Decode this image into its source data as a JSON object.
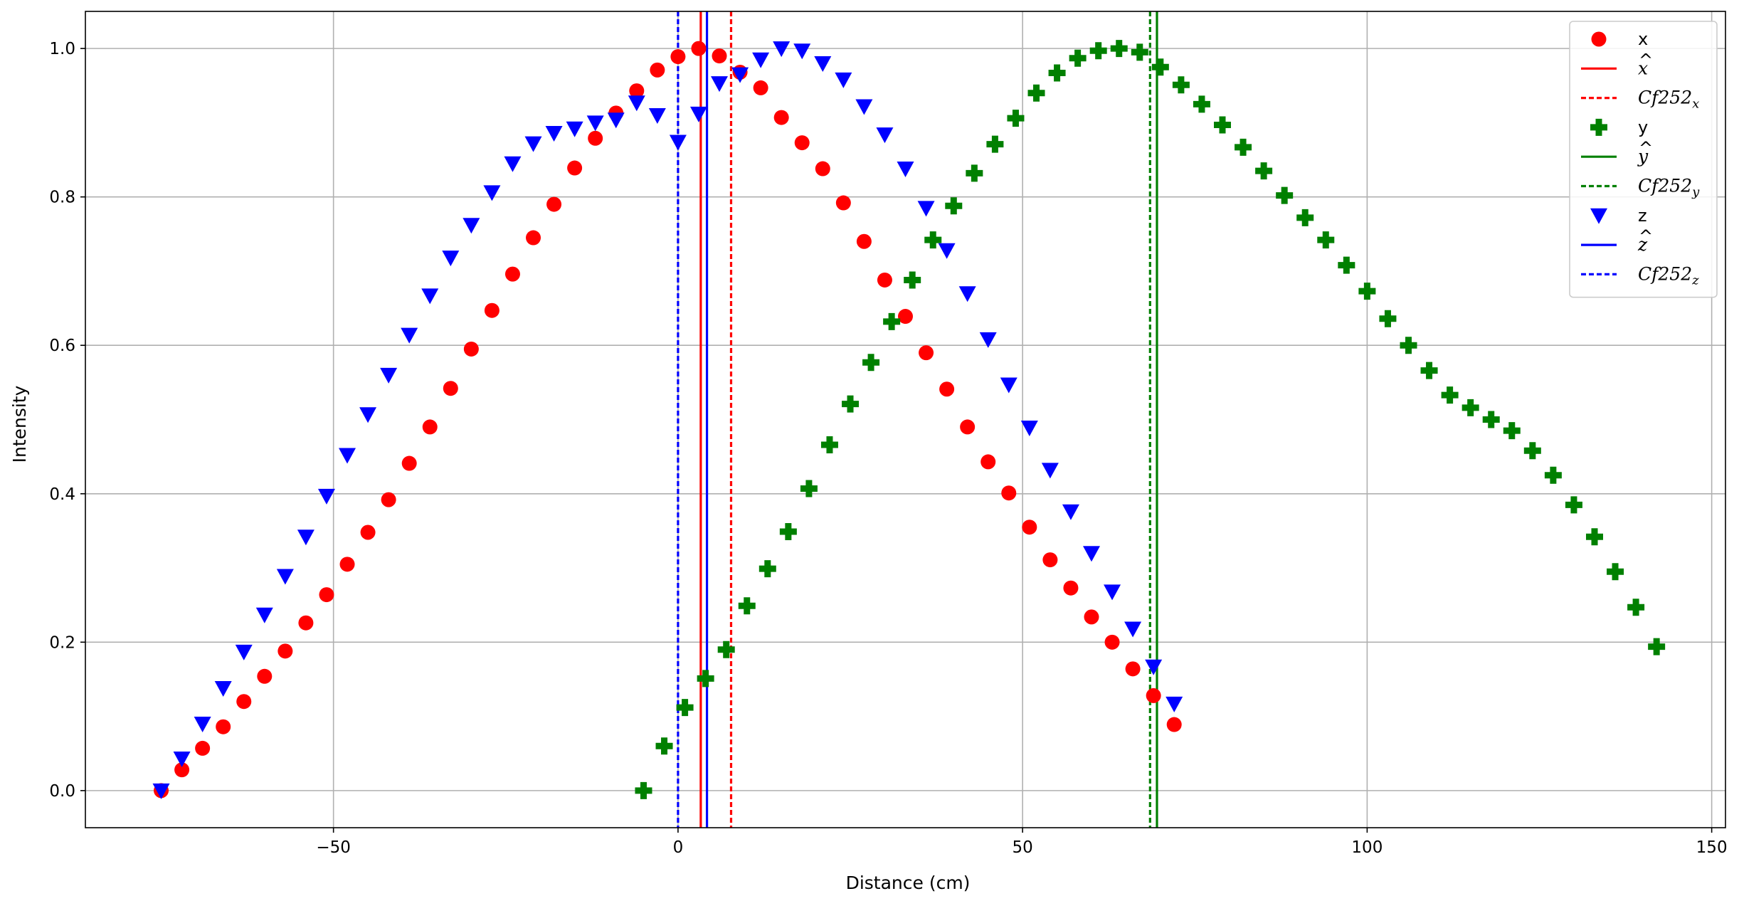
{
  "chart_data": {
    "type": "scatter",
    "title": "",
    "xlabel": "Distance (cm)",
    "ylabel": "Intensity",
    "xlim": [
      -86,
      152
    ],
    "ylim": [
      -0.05,
      1.05
    ],
    "xticks": [
      -50,
      0,
      50,
      100,
      150
    ],
    "xtick_labels": [
      "−50",
      "0",
      "50",
      "100",
      "150"
    ],
    "yticks": [
      0.0,
      0.2,
      0.4,
      0.6,
      0.8,
      1.0
    ],
    "ytick_labels": [
      "0.0",
      "0.2",
      "0.4",
      "0.6",
      "0.8",
      "1.0"
    ],
    "grid": true,
    "legend_position": "top-right",
    "series": [
      {
        "name": "x",
        "marker": "circle",
        "color": "#ff0000",
        "x": [
          -75,
          -72,
          -69,
          -66,
          -63,
          -60,
          -57,
          -54,
          -51,
          -48,
          -45,
          -42,
          -39,
          -36,
          -33,
          -30,
          -27,
          -24,
          -21,
          -18,
          -15,
          -12,
          -9,
          -6,
          -3,
          0,
          3,
          6,
          9,
          12,
          15,
          18,
          21,
          24,
          27,
          30,
          33,
          36,
          39,
          42,
          45,
          48,
          51,
          54,
          57,
          60,
          63,
          66,
          69,
          72
        ],
        "y": [
          0.0,
          0.028,
          0.057,
          0.086,
          0.12,
          0.154,
          0.188,
          0.226,
          0.264,
          0.305,
          0.348,
          0.392,
          0.441,
          0.49,
          0.542,
          0.595,
          0.647,
          0.696,
          0.745,
          0.79,
          0.839,
          0.879,
          0.913,
          0.943,
          0.971,
          0.989,
          1.0,
          0.99,
          0.968,
          0.947,
          0.907,
          0.873,
          0.838,
          0.792,
          0.74,
          0.688,
          0.639,
          0.59,
          0.541,
          0.49,
          0.443,
          0.401,
          0.355,
          0.311,
          0.273,
          0.234,
          0.2,
          0.164,
          0.128,
          0.089
        ]
      },
      {
        "name": "y",
        "marker": "plus",
        "color": "#008000",
        "x": [
          -5,
          -2,
          1,
          4,
          7,
          10,
          13,
          16,
          19,
          22,
          25,
          28,
          31,
          34,
          37,
          40,
          43,
          46,
          49,
          52,
          55,
          58,
          61,
          64,
          67,
          70,
          73,
          76,
          79,
          82,
          85,
          88,
          91,
          94,
          97,
          100,
          103,
          106,
          109,
          112,
          115,
          118,
          121,
          124,
          127,
          130,
          133,
          136,
          139,
          142
        ],
        "y": [
          0.0,
          0.06,
          0.112,
          0.151,
          0.19,
          0.249,
          0.299,
          0.349,
          0.407,
          0.466,
          0.521,
          0.577,
          0.632,
          0.688,
          0.742,
          0.788,
          0.832,
          0.871,
          0.906,
          0.94,
          0.967,
          0.987,
          0.997,
          1.0,
          0.995,
          0.975,
          0.951,
          0.925,
          0.897,
          0.867,
          0.835,
          0.802,
          0.772,
          0.742,
          0.708,
          0.673,
          0.636,
          0.6,
          0.566,
          0.533,
          0.516,
          0.5,
          0.485,
          0.458,
          0.425,
          0.385,
          0.342,
          0.295,
          0.247,
          0.194
        ]
      },
      {
        "name": "z",
        "marker": "triangle-down",
        "color": "#0000ff",
        "x": [
          -75,
          -72,
          -69,
          -66,
          -63,
          -60,
          -57,
          -54,
          -51,
          -48,
          -45,
          -42,
          -39,
          -36,
          -33,
          -30,
          -27,
          -24,
          -21,
          -18,
          -15,
          -12,
          -9,
          -6,
          -3,
          0,
          3,
          6,
          9,
          12,
          15,
          18,
          21,
          24,
          27,
          30,
          33,
          36,
          39,
          42,
          45,
          48,
          51,
          54,
          57,
          60,
          63,
          66,
          69,
          72
        ],
        "y": [
          0.0,
          0.043,
          0.09,
          0.138,
          0.187,
          0.237,
          0.289,
          0.342,
          0.397,
          0.452,
          0.507,
          0.56,
          0.614,
          0.667,
          0.718,
          0.762,
          0.806,
          0.845,
          0.872,
          0.886,
          0.892,
          0.9,
          0.904,
          0.927,
          0.91,
          0.874,
          0.912,
          0.953,
          0.965,
          0.985,
          1.0,
          0.997,
          0.98,
          0.958,
          0.922,
          0.884,
          0.838,
          0.785,
          0.728,
          0.67,
          0.608,
          0.547,
          0.489,
          0.432,
          0.376,
          0.32,
          0.268,
          0.218,
          0.167,
          0.117
        ]
      }
    ],
    "vertical_lines": [
      {
        "name": "$\\hat{x}$",
        "label_base": "x",
        "label_kind": "hat",
        "x": 3.3,
        "color": "#ff0000",
        "style": "solid"
      },
      {
        "name": "$Cf252_x$",
        "label_base": "Cf252",
        "label_sub": "x",
        "label_kind": "sub",
        "x": 7.7,
        "color": "#ff0000",
        "style": "dashed"
      },
      {
        "name": "$\\hat{y}$",
        "label_base": "y",
        "label_kind": "hat",
        "x": 69.5,
        "color": "#008000",
        "style": "solid"
      },
      {
        "name": "$Cf252_y$",
        "label_base": "Cf252",
        "label_sub": "y",
        "label_kind": "sub",
        "x": 68.5,
        "color": "#008000",
        "style": "dashed"
      },
      {
        "name": "$\\hat{z}$",
        "label_base": "z",
        "label_kind": "hat",
        "x": 4.2,
        "color": "#0000ff",
        "style": "solid"
      },
      {
        "name": "$Cf252_z$",
        "label_base": "Cf252",
        "label_sub": "z",
        "label_kind": "sub",
        "x": 0.0,
        "color": "#0000ff",
        "style": "dashed"
      }
    ],
    "legend_order": [
      {
        "kind": "series",
        "index": 0
      },
      {
        "kind": "vline",
        "index": 0
      },
      {
        "kind": "vline",
        "index": 1
      },
      {
        "kind": "series",
        "index": 1
      },
      {
        "kind": "vline",
        "index": 2
      },
      {
        "kind": "vline",
        "index": 3
      },
      {
        "kind": "series",
        "index": 2
      },
      {
        "kind": "vline",
        "index": 4
      },
      {
        "kind": "vline",
        "index": 5
      }
    ]
  }
}
